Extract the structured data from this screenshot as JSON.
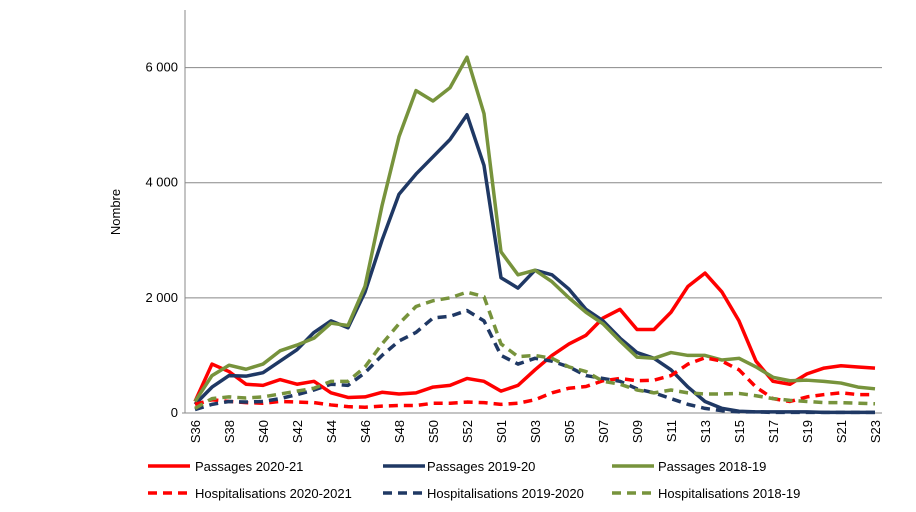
{
  "chart_data": {
    "type": "line",
    "y_label": "Nombre",
    "categories": [
      "S36",
      null,
      "S38",
      null,
      "S40",
      null,
      "S42",
      null,
      "S44",
      null,
      "S46",
      null,
      "S48",
      null,
      "S50",
      null,
      "S52",
      null,
      "S01",
      null,
      "S03",
      null,
      "S05",
      null,
      "S07",
      null,
      "S09",
      null,
      "S11",
      null,
      "S13",
      null,
      "S15",
      null,
      "S17",
      null,
      "S19",
      null,
      "S21",
      null,
      "S23"
    ],
    "ylim": [
      0,
      7000
    ],
    "yticks": [
      0,
      {
        "value": 2000,
        "label": "2 000"
      },
      {
        "value": 4000,
        "label": "4 000"
      },
      {
        "value": 6000,
        "label": "6 000"
      }
    ],
    "grid": true,
    "legend": "bottom",
    "series": [
      {
        "name": "Passages 2020-21",
        "color": "#ff0000",
        "dash": false,
        "values": [
          200,
          850,
          720,
          500,
          480,
          580,
          500,
          550,
          350,
          270,
          280,
          360,
          330,
          350,
          450,
          480,
          600,
          550,
          380,
          480,
          750,
          1000,
          1200,
          1350,
          1650,
          1800,
          1450,
          1450,
          1750,
          2200,
          2430,
          2100,
          1600,
          900,
          550,
          500,
          680,
          780,
          820,
          800,
          780
        ]
      },
      {
        "name": "Passages 2019-20",
        "color": "#1f3864",
        "dash": false,
        "values": [
          150,
          450,
          650,
          640,
          700,
          900,
          1100,
          1400,
          1600,
          1480,
          2100,
          3000,
          3800,
          4150,
          4450,
          4750,
          5180,
          4300,
          2350,
          2170,
          2480,
          2400,
          2150,
          1800,
          1600,
          1300,
          1050,
          950,
          750,
          450,
          200,
          80,
          30,
          20,
          20,
          20,
          20,
          10,
          10,
          10,
          10
        ]
      },
      {
        "name": "Passages 2018-19",
        "color": "#77933c",
        "dash": false,
        "values": [
          200,
          650,
          830,
          760,
          850,
          1080,
          1180,
          1300,
          1560,
          1520,
          2200,
          3600,
          4800,
          5600,
          5420,
          5650,
          6180,
          5200,
          2800,
          2400,
          2480,
          2280,
          2000,
          1750,
          1550,
          1250,
          970,
          950,
          1050,
          1000,
          1000,
          920,
          950,
          800,
          620,
          560,
          570,
          550,
          520,
          450,
          420
        ]
      },
      {
        "name": "Hospitalisations 2020-2021",
        "color": "#ff0000",
        "dash": true,
        "values": [
          150,
          230,
          200,
          180,
          170,
          200,
          190,
          180,
          140,
          110,
          100,
          120,
          130,
          130,
          170,
          170,
          190,
          180,
          150,
          170,
          230,
          350,
          430,
          460,
          560,
          600,
          560,
          570,
          650,
          850,
          960,
          900,
          750,
          450,
          250,
          200,
          280,
          320,
          350,
          320,
          320
        ]
      },
      {
        "name": "Hospitalisations 2019-2020",
        "color": "#1f3864",
        "dash": true,
        "values": [
          60,
          150,
          200,
          190,
          200,
          250,
          320,
          400,
          500,
          480,
          700,
          1000,
          1250,
          1400,
          1650,
          1680,
          1780,
          1600,
          1000,
          850,
          950,
          900,
          800,
          650,
          600,
          550,
          420,
          350,
          250,
          150,
          80,
          40,
          20,
          20,
          10,
          10,
          10,
          10,
          10,
          10,
          10
        ]
      },
      {
        "name": "Hospitalisations 2018-19",
        "color": "#77933c",
        "dash": true,
        "values": [
          80,
          250,
          280,
          260,
          280,
          330,
          380,
          430,
          550,
          550,
          800,
          1200,
          1550,
          1850,
          1950,
          2000,
          2100,
          2020,
          1200,
          980,
          1000,
          950,
          800,
          720,
          550,
          500,
          400,
          350,
          400,
          350,
          330,
          330,
          340,
          300,
          250,
          220,
          200,
          180,
          180,
          170,
          160
        ]
      }
    ]
  }
}
